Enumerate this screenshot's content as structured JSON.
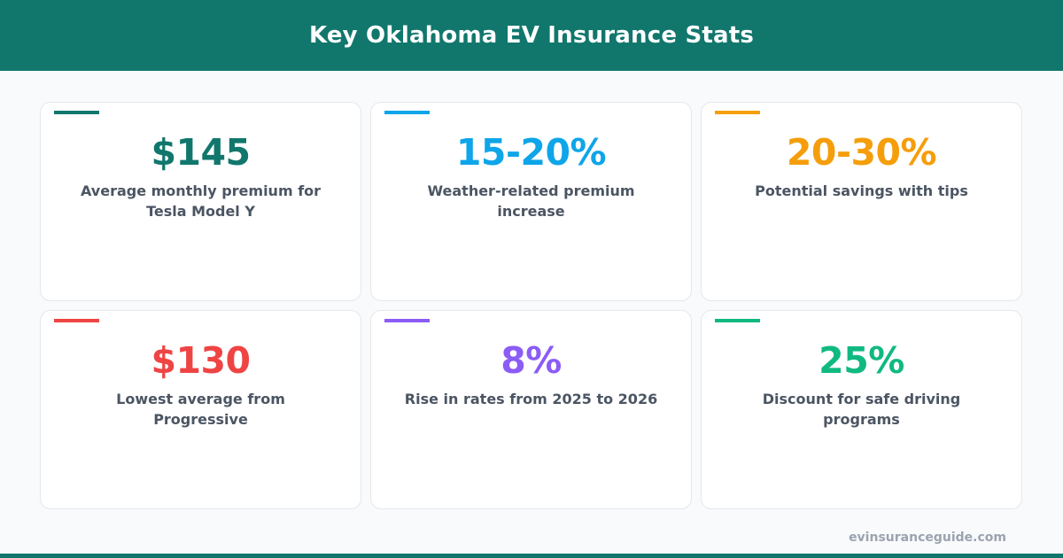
{
  "header": {
    "title": "Key Oklahoma EV Insurance Stats"
  },
  "stats": [
    {
      "value": "$145",
      "description": "Average monthly premium for Tesla Model Y",
      "color": "#11776d"
    },
    {
      "value": "15-20%",
      "description": "Weather-related premium increase",
      "color": "#0ea5e9"
    },
    {
      "value": "20-30%",
      "description": "Potential savings with tips",
      "color": "#f59e0b"
    },
    {
      "value": "$130",
      "description": "Lowest average from Progressive",
      "color": "#ef4444"
    },
    {
      "value": "8%",
      "description": "Rise in rates from 2025 to 2026",
      "color": "#8b5cf6"
    },
    {
      "value": "25%",
      "description": "Discount for safe driving programs",
      "color": "#10b981"
    }
  ],
  "footer": {
    "site": "evinsuranceguide.com"
  }
}
